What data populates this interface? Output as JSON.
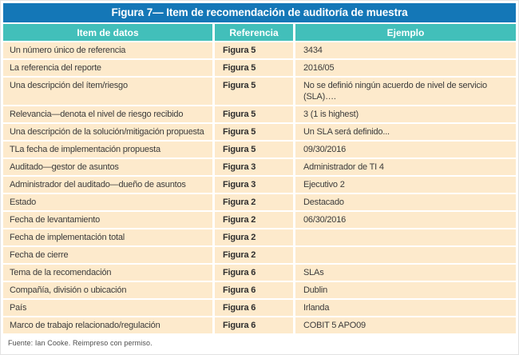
{
  "figure": {
    "title": "Figura 7— Item de recomendación de auditoría de muestra",
    "columns": [
      "Item de datos",
      "Referencia",
      "Ejemplo"
    ],
    "rows": [
      {
        "item": "Un número único de referencia",
        "ref": "Figura 5",
        "example": "3434"
      },
      {
        "item": "La referencia del reporte",
        "ref": "Figura 5",
        "example": "2016/05"
      },
      {
        "item": "Una descripción del ítem/riesgo",
        "ref": "Figura 5",
        "example": "No se definió ningún acuerdo de nivel de servicio (SLA)…."
      },
      {
        "item": "Relevancia—denota el nivel de riesgo recibido",
        "ref": "Figura 5",
        "example": "3 (1 is highest)"
      },
      {
        "item": "Una descripción de la solución/mitigación propuesta",
        "ref": "Figura 5",
        "example": "Un SLA será definido..."
      },
      {
        "item": "TLa fecha de implementación propuesta",
        "ref": "Figura 5",
        "example": "09/30/2016"
      },
      {
        "item": "Auditado—gestor de asuntos",
        "ref": "Figura 3",
        "example": "Administrador de TI 4"
      },
      {
        "item": "Administrador del auditado—dueño de asuntos",
        "ref": "Figura 3",
        "example": "Ejecutivo 2"
      },
      {
        "item": "Estado",
        "ref": "Figura 2",
        "example": "Destacado"
      },
      {
        "item": "Fecha de levantamiento",
        "ref": "Figura 2",
        "example": "06/30/2016"
      },
      {
        "item": "Fecha de implementación total",
        "ref": "Figura 2",
        "example": ""
      },
      {
        "item": "Fecha de cierre",
        "ref": "Figura 2",
        "example": ""
      },
      {
        "item": "Tema de la recomendación",
        "ref": "Figura 6",
        "example": "SLAs"
      },
      {
        "item": "Compañía, división o ubicación",
        "ref": "Figura 6",
        "example": "Dublin"
      },
      {
        "item": "País",
        "ref": "Figura 6",
        "example": "Irlanda"
      },
      {
        "item": "Marco de trabajo relacionado/regulación",
        "ref": "Figura 6",
        "example": "COBIT 5 APO09"
      }
    ],
    "source": "Fuente:  Ian Cooke. Reimpreso con permiso.",
    "colors": {
      "title_bg": "#1477b7",
      "header_bg": "#42bfba",
      "row_bg": "#fdeacc",
      "title_text": "#ffffff",
      "body_text": "#3a3a3a",
      "source_text": "#4d4d4d"
    }
  }
}
